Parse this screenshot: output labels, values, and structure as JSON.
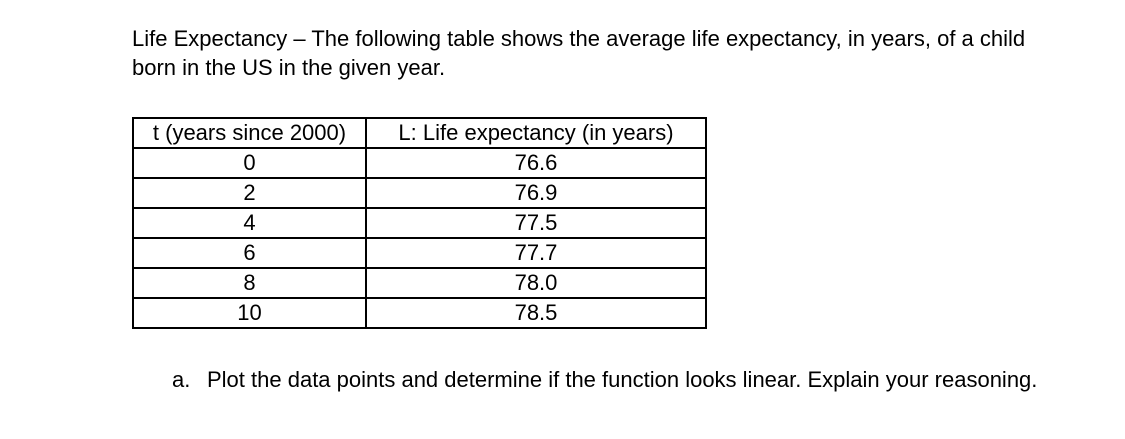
{
  "page": {
    "background": "#ffffff",
    "text_color": "#000000",
    "border_color": "#000000"
  },
  "intro": {
    "line1": "Life Expectancy – The following table shows the average life expectancy, in years, of a child",
    "line2": "born in the US in the given year."
  },
  "table": {
    "headers": [
      "t (years since 2000)",
      "L: Life expectancy (in years)"
    ],
    "rows": [
      [
        "0",
        "76.6"
      ],
      [
        "2",
        "76.9"
      ],
      [
        "4",
        "77.5"
      ],
      [
        "6",
        "77.7"
      ],
      [
        "8",
        "78.0"
      ],
      [
        "10",
        "78.5"
      ]
    ]
  },
  "question_a": {
    "label": "a.",
    "text": "Plot the data points and determine if the function looks linear. Explain your reasoning."
  }
}
